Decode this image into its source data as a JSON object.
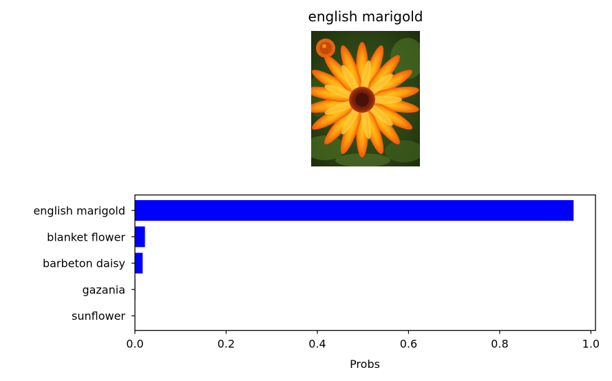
{
  "chart_data": {
    "type": "bar",
    "orientation": "horizontal",
    "title": "english marigold",
    "xlabel": "Probs",
    "ylabel": "",
    "categories": [
      "english marigold",
      "blanket flower",
      "barbeton daisy",
      "gazania",
      "sunflower"
    ],
    "values": [
      0.962,
      0.022,
      0.017,
      0.001,
      0.0005
    ],
    "xlim": [
      0,
      1.01
    ],
    "xticks": [
      "0.0",
      "0.2",
      "0.4",
      "0.6",
      "0.8",
      "1.0"
    ],
    "xtick_values": [
      0,
      0.2,
      0.4,
      0.6,
      0.8,
      1.0
    ],
    "bar_color": "#0000ff",
    "grid": false
  },
  "image": {
    "subject": "orange-flower-photo"
  }
}
